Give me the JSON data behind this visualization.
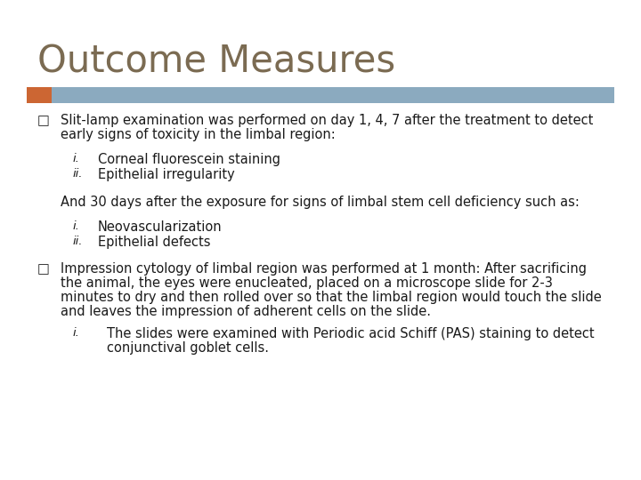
{
  "title": "Outcome Measures",
  "title_color": "#7B6B52",
  "title_fontsize": 30,
  "bg_color": "#FFFFFF",
  "accent_bar_orange": "#CC6633",
  "accent_bar_blue": "#8BAABF",
  "bullet_color": "#1A1A1A",
  "bullet_square": "□",
  "bullet1_text_line1": "Slit-lamp examination was performed on day 1, 4, 7 after the treatment to detect",
  "bullet1_text_line2": "early signs of toxicity in the limbal region:",
  "sub_i_1": "Corneal fluorescein staining",
  "sub_ii_1": "Epithelial irregularity",
  "middle_text": "And 30 days after the exposure for signs of limbal stem cell deficiency such as:",
  "sub_i_2": "Neovascularization",
  "sub_ii_2": "Epithelial defects",
  "bullet2_text_line1": "Impression cytology of limbal region was performed at 1 month: After sacrificing",
  "bullet2_text_line2": "the animal, the eyes were enucleated, placed on a microscope slide for 2-3",
  "bullet2_text_line3": "minutes to dry and then rolled over so that the limbal region would touch the slide",
  "bullet2_text_line4": "and leaves the impression of adherent cells on the slide.",
  "sub_i_3_line1": "The slides were examined with Periodic acid Schiff (PAS) staining to detect",
  "sub_i_3_line2": "conjunctival goblet cells.",
  "text_fontsize": 10.5,
  "text_color": "#1A1A1A"
}
